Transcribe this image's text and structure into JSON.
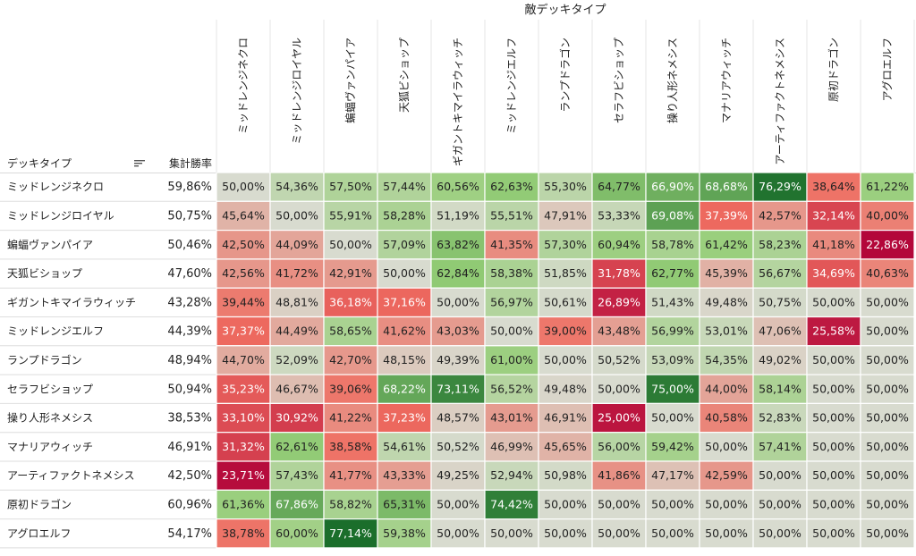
{
  "chart_data": {
    "type": "heatmap",
    "column_group_title": "敵デッキタイプ",
    "row_header": "デッキタイプ",
    "summary_header": "集計勝率",
    "columns": [
      "ミッドレンジネクロ",
      "ミッドレンジロイヤル",
      "蝙蝠ヴァンパイア",
      "天狐ビショップ",
      "ギガントキマイラウィッチ",
      "ミッドレンジエルフ",
      "ランプドラゴン",
      "セラフビショップ",
      "操り人形ネメシス",
      "マナリアウィッチ",
      "アーティファクトネメシス",
      "原初ドラゴン",
      "アグロエルフ"
    ],
    "rows": [
      {
        "name": "ミッドレンジネクロ",
        "total": "59,86%",
        "cells": [
          "50,00%",
          "54,36%",
          "57,50%",
          "57,44%",
          "60,56%",
          "62,63%",
          "55,30%",
          "64,77%",
          "66,90%",
          "68,68%",
          "76,29%",
          "38,64%",
          "61,22%"
        ]
      },
      {
        "name": "ミッドレンジロイヤル",
        "total": "50,75%",
        "cells": [
          "45,64%",
          "50,00%",
          "55,91%",
          "58,28%",
          "51,19%",
          "55,51%",
          "47,91%",
          "53,33%",
          "69,08%",
          "37,39%",
          "42,57%",
          "32,14%",
          "40,00%"
        ]
      },
      {
        "name": "蝙蝠ヴァンパイア",
        "total": "50,46%",
        "cells": [
          "42,50%",
          "44,09%",
          "50,00%",
          "57,09%",
          "63,82%",
          "41,35%",
          "57,30%",
          "60,94%",
          "58,78%",
          "61,42%",
          "58,23%",
          "41,18%",
          "22,86%"
        ]
      },
      {
        "name": "天狐ビショップ",
        "total": "47,60%",
        "cells": [
          "42,56%",
          "41,72%",
          "42,91%",
          "50,00%",
          "62,84%",
          "58,38%",
          "51,85%",
          "31,78%",
          "62,77%",
          "45,39%",
          "56,67%",
          "34,69%",
          "40,63%"
        ]
      },
      {
        "name": "ギガントキマイラウィッチ",
        "total": "43,28%",
        "cells": [
          "39,44%",
          "48,81%",
          "36,18%",
          "37,16%",
          "50,00%",
          "56,97%",
          "50,61%",
          "26,89%",
          "51,43%",
          "49,48%",
          "50,75%",
          "50,00%",
          "50,00%"
        ]
      },
      {
        "name": "ミッドレンジエルフ",
        "total": "44,39%",
        "cells": [
          "37,37%",
          "44,49%",
          "58,65%",
          "41,62%",
          "43,03%",
          "50,00%",
          "39,00%",
          "43,48%",
          "56,99%",
          "53,01%",
          "47,06%",
          "25,58%",
          "50,00%"
        ]
      },
      {
        "name": "ランプドラゴン",
        "total": "48,94%",
        "cells": [
          "44,70%",
          "52,09%",
          "42,70%",
          "48,15%",
          "49,39%",
          "61,00%",
          "50,00%",
          "50,52%",
          "53,09%",
          "54,35%",
          "49,02%",
          "50,00%",
          "50,00%"
        ]
      },
      {
        "name": "セラフビショップ",
        "total": "50,94%",
        "cells": [
          "35,23%",
          "46,67%",
          "39,06%",
          "68,22%",
          "73,11%",
          "56,52%",
          "49,48%",
          "50,00%",
          "75,00%",
          "44,00%",
          "58,14%",
          "50,00%",
          "50,00%"
        ]
      },
      {
        "name": "操り人形ネメシス",
        "total": "38,53%",
        "cells": [
          "33,10%",
          "30,92%",
          "41,22%",
          "37,23%",
          "48,57%",
          "43,01%",
          "46,91%",
          "25,00%",
          "50,00%",
          "40,58%",
          "52,83%",
          "50,00%",
          "50,00%"
        ]
      },
      {
        "name": "マナリアウィッチ",
        "total": "46,91%",
        "cells": [
          "31,32%",
          "62,61%",
          "38,58%",
          "54,61%",
          "50,52%",
          "46,99%",
          "45,65%",
          "56,00%",
          "59,42%",
          "50,00%",
          "57,41%",
          "50,00%",
          "50,00%"
        ]
      },
      {
        "name": "アーティファクトネメシス",
        "total": "42,50%",
        "cells": [
          "23,71%",
          "57,43%",
          "41,77%",
          "43,33%",
          "49,25%",
          "52,94%",
          "50,98%",
          "41,86%",
          "47,17%",
          "42,59%",
          "50,00%",
          "50,00%",
          "50,00%"
        ]
      },
      {
        "name": "原初ドラゴン",
        "total": "60,96%",
        "cells": [
          "61,36%",
          "67,86%",
          "58,82%",
          "65,31%",
          "50,00%",
          "74,42%",
          "50,00%",
          "50,00%",
          "50,00%",
          "50,00%",
          "50,00%",
          "50,00%",
          "50,00%"
        ]
      },
      {
        "name": "アグロエルフ",
        "total": "54,17%",
        "cells": [
          "38,78%",
          "60,00%",
          "77,14%",
          "59,38%",
          "50,00%",
          "50,00%",
          "50,00%",
          "50,00%",
          "50,00%",
          "50,00%",
          "50,00%",
          "50,00%",
          "50,00%"
        ]
      }
    ],
    "color_scale": {
      "low": "#b3073a",
      "mid": "#d8dbcf",
      "high": "#1b6e2b"
    },
    "sort_icon": "sort-descending-icon"
  }
}
